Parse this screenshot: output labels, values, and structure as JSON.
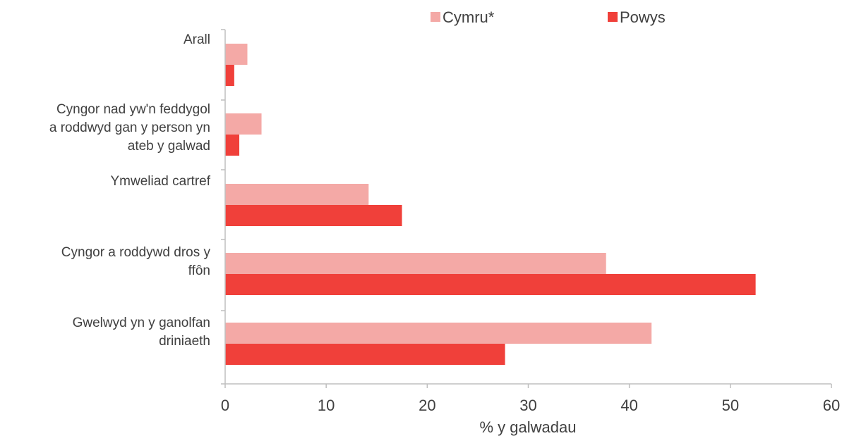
{
  "chart_data": {
    "type": "bar",
    "orientation": "horizontal",
    "categories": [
      "Arall",
      "Cyngor nad yw'n feddygol a roddwyd gan y person yn ateb y galwad",
      "Ymweliad cartref",
      "Cyngor a roddywd dros y ffôn",
      "Gwelwyd yn y ganolfan driniaeth"
    ],
    "category_lines": [
      [
        "Arall"
      ],
      [
        "Cyngor nad yw'n feddygol",
        "a roddwyd gan y person yn",
        "ateb y galwad"
      ],
      [
        "Ymweliad cartref"
      ],
      [
        "Cyngor a roddywd dros y",
        "ffôn"
      ],
      [
        "Gwelwyd yn y ganolfan",
        "driniaeth"
      ]
    ],
    "series": [
      {
        "name": "Cymru*",
        "color": "#f4a9a6",
        "values": [
          2.2,
          3.6,
          14.2,
          37.7,
          42.2
        ]
      },
      {
        "name": "Powys",
        "color": "#f0403a",
        "values": [
          0.9,
          1.4,
          17.5,
          52.5,
          27.7
        ]
      }
    ],
    "xlabel": "% y galwadau",
    "xlim": [
      0,
      60
    ],
    "xticks": [
      0,
      10,
      20,
      30,
      40,
      50,
      60
    ],
    "grid": false,
    "legend_position": "top"
  }
}
